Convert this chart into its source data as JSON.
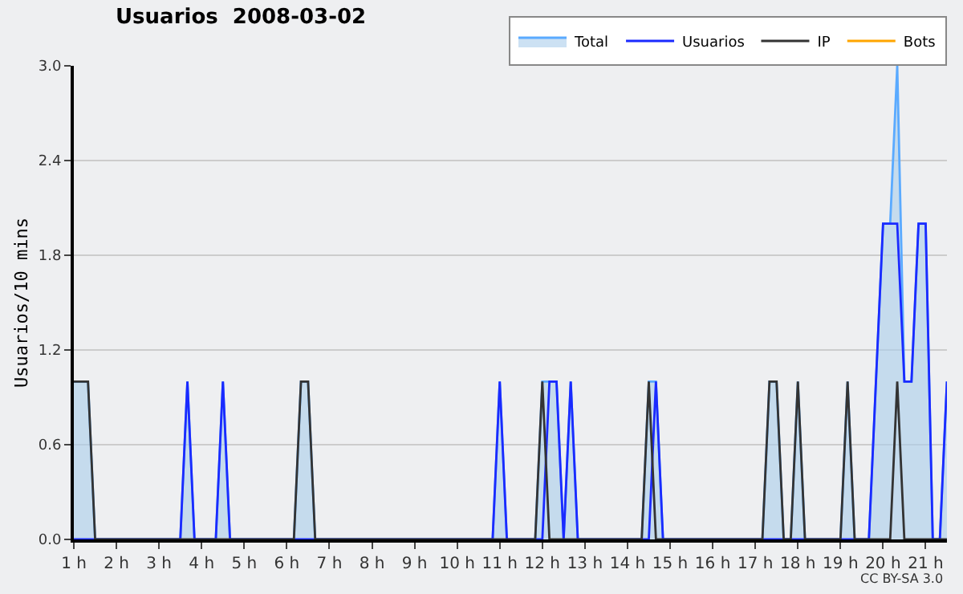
{
  "chart_data": {
    "type": "line",
    "title": "Usuarios  2008-03-02",
    "ylabel": "Usuarios/10 mins",
    "xlim": [
      1,
      21.5
    ],
    "ylim": [
      0,
      3
    ],
    "xticks": [
      {
        "value": 1,
        "label": "1 h"
      },
      {
        "value": 2,
        "label": "2 h"
      },
      {
        "value": 3,
        "label": "3 h"
      },
      {
        "value": 4,
        "label": "4 h"
      },
      {
        "value": 5,
        "label": "5 h"
      },
      {
        "value": 6,
        "label": "6 h"
      },
      {
        "value": 7,
        "label": "7 h"
      },
      {
        "value": 8,
        "label": "8 h"
      },
      {
        "value": 9,
        "label": "9 h"
      },
      {
        "value": 10,
        "label": "10 h"
      },
      {
        "value": 11,
        "label": "11 h"
      },
      {
        "value": 12,
        "label": "12 h"
      },
      {
        "value": 13,
        "label": "13 h"
      },
      {
        "value": 14,
        "label": "14 h"
      },
      {
        "value": 15,
        "label": "15 h"
      },
      {
        "value": 16,
        "label": "16 h"
      },
      {
        "value": 17,
        "label": "17 h"
      },
      {
        "value": 18,
        "label": "18 h"
      },
      {
        "value": 19,
        "label": "19 h"
      },
      {
        "value": 20,
        "label": "20 h"
      },
      {
        "value": 21,
        "label": "21 h"
      }
    ],
    "yticks": [
      {
        "value": 0,
        "label": "0.0"
      },
      {
        "value": 0.6,
        "label": "0.6"
      },
      {
        "value": 1.2,
        "label": "1.2"
      },
      {
        "value": 1.8,
        "label": "1.8"
      },
      {
        "value": 2.4,
        "label": "2.4"
      },
      {
        "value": 3,
        "label": "3.0"
      }
    ],
    "grid": "y",
    "legend": "top right",
    "marker": "none",
    "annotations": [
      "CC BY-SA 3.0"
    ],
    "series": [
      {
        "name": "Total",
        "type": "area",
        "color": "#5aaaff",
        "x": [
          1,
          1.333,
          1.5,
          3.5,
          3.667,
          3.833,
          4.333,
          4.5,
          4.667,
          6.167,
          6.333,
          6.5,
          6.667,
          10.833,
          11,
          11.167,
          11.833,
          12,
          12.167,
          12.333,
          12.5,
          12.667,
          12.833,
          14.333,
          14.5,
          14.667,
          14.833,
          17.167,
          17.333,
          17.5,
          17.667,
          17.833,
          18,
          18.167,
          19,
          19.167,
          19.333,
          19.667,
          19.833,
          20,
          20.167,
          20.333,
          20.5,
          20.667,
          20.833,
          21,
          21.167,
          21.333,
          21.5
        ],
        "values": [
          1,
          1,
          0,
          0,
          1,
          0,
          0,
          1,
          0,
          0,
          1,
          1,
          0,
          0,
          1,
          0,
          0,
          1,
          1,
          1,
          0,
          1,
          0,
          0,
          1,
          1,
          0,
          0,
          1,
          1,
          0,
          0,
          1,
          0,
          0,
          1,
          0,
          0,
          1,
          2,
          2,
          3,
          1,
          1,
          2,
          2,
          0,
          0,
          1
        ]
      },
      {
        "name": "Usuarios",
        "color": "#1a2aff",
        "x": [
          1,
          3.5,
          3.667,
          3.833,
          4.333,
          4.5,
          4.667,
          10.833,
          11,
          11.167,
          12,
          12.167,
          12.333,
          12.5,
          12.667,
          12.833,
          14.5,
          14.667,
          14.833,
          19.667,
          19.833,
          20,
          20.167,
          20.333,
          20.5,
          20.667,
          20.833,
          21,
          21.167,
          21.333,
          21.5
        ],
        "values": [
          0,
          0,
          1,
          0,
          0,
          1,
          0,
          0,
          1,
          0,
          0,
          1,
          1,
          0,
          1,
          0,
          0,
          1,
          0,
          0,
          1,
          2,
          2,
          2,
          1,
          1,
          2,
          2,
          0,
          0,
          1
        ]
      },
      {
        "name": "IP",
        "color": "#333333",
        "x": [
          1,
          1.333,
          1.5,
          6.167,
          6.333,
          6.5,
          6.667,
          11.833,
          12,
          12.167,
          14.333,
          14.5,
          14.667,
          17.167,
          17.333,
          17.5,
          17.667,
          17.833,
          18,
          18.167,
          19,
          19.167,
          19.333,
          20.167,
          20.333,
          20.5,
          21.5
        ],
        "values": [
          1,
          1,
          0,
          0,
          1,
          1,
          0,
          0,
          1,
          0,
          0,
          1,
          0,
          0,
          1,
          1,
          0,
          0,
          1,
          0,
          0,
          1,
          0,
          0,
          1,
          0,
          0
        ]
      },
      {
        "name": "Bots",
        "color": "#ffa500"
      }
    ]
  }
}
